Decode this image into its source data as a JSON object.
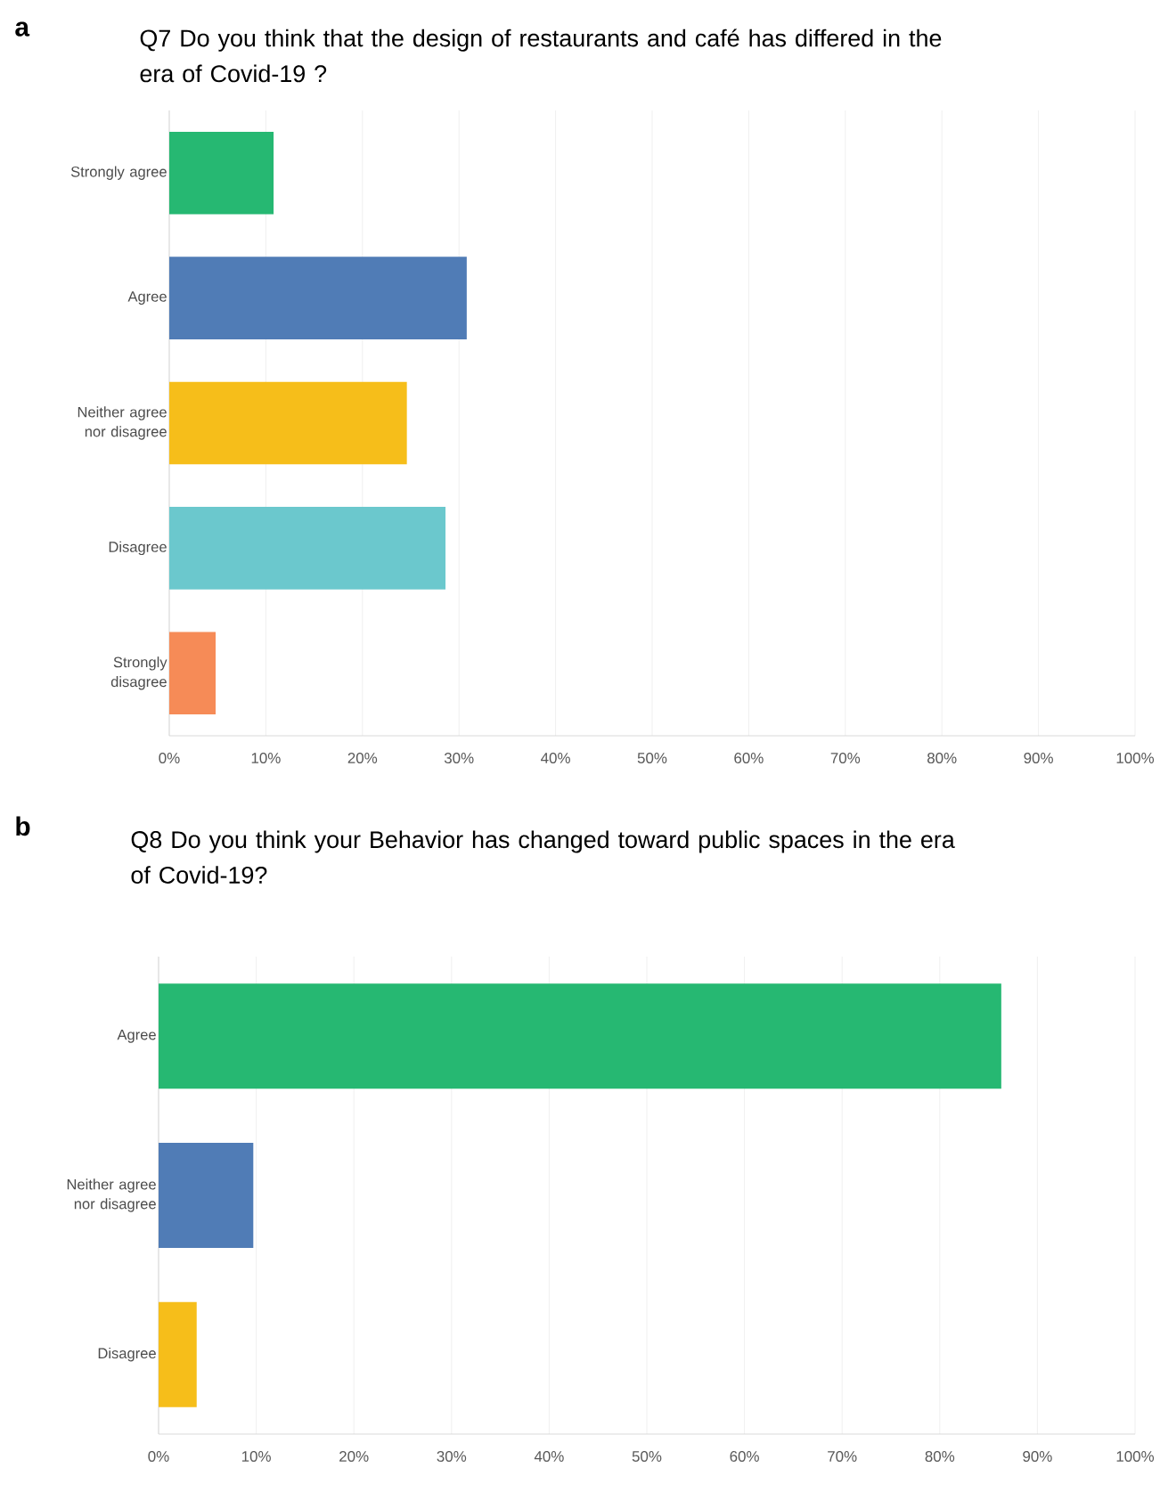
{
  "chart_data": [
    {
      "type": "bar",
      "orientation": "horizontal",
      "title": "Q7 Do you think that the design of restaurants and café has differed in the era of Covid-19 ?",
      "annotations": [
        "a"
      ],
      "categories": [
        "Strongly agree",
        "Agree",
        "Neither agree nor disagree",
        "Disagree",
        "Strongly disagree"
      ],
      "values": [
        10.8,
        30.8,
        24.6,
        28.6,
        4.8
      ],
      "colors": [
        "#26b872",
        "#507cb6",
        "#f6be1a",
        "#6bc8cd",
        "#f68b57"
      ],
      "xlim": [
        0,
        100
      ],
      "xticks": [
        {
          "value": 0,
          "label": "0%"
        },
        {
          "value": 10,
          "label": "10%"
        },
        {
          "value": 20,
          "label": "20%"
        },
        {
          "value": 30,
          "label": "30%"
        },
        {
          "value": 40,
          "label": "40%"
        },
        {
          "value": 50,
          "label": "50%"
        },
        {
          "value": 60,
          "label": "60%"
        },
        {
          "value": 70,
          "label": "70%"
        },
        {
          "value": 80,
          "label": "80%"
        },
        {
          "value": 90,
          "label": "90%"
        },
        {
          "value": 100,
          "label": "100%"
        }
      ],
      "grid": "x"
    },
    {
      "type": "bar",
      "orientation": "horizontal",
      "title": "Q8 Do you think your Behavior has changed toward public spaces in the era of Covid-19?",
      "annotations": [
        "b"
      ],
      "categories": [
        "Agree",
        "Neither agree nor disagree",
        "Disagree"
      ],
      "values": [
        86.3,
        9.7,
        3.9
      ],
      "colors": [
        "#26b872",
        "#507cb6",
        "#f6be1a"
      ],
      "xlim": [
        0,
        100
      ],
      "xticks": [
        {
          "value": 0,
          "label": "0%"
        },
        {
          "value": 10,
          "label": "10%"
        },
        {
          "value": 20,
          "label": "20%"
        },
        {
          "value": 30,
          "label": "30%"
        },
        {
          "value": 40,
          "label": "40%"
        },
        {
          "value": 50,
          "label": "50%"
        },
        {
          "value": 60,
          "label": "60%"
        },
        {
          "value": 70,
          "label": "70%"
        },
        {
          "value": 80,
          "label": "80%"
        },
        {
          "value": 90,
          "label": "90%"
        },
        {
          "value": 100,
          "label": "100%"
        }
      ],
      "grid": "x"
    }
  ]
}
